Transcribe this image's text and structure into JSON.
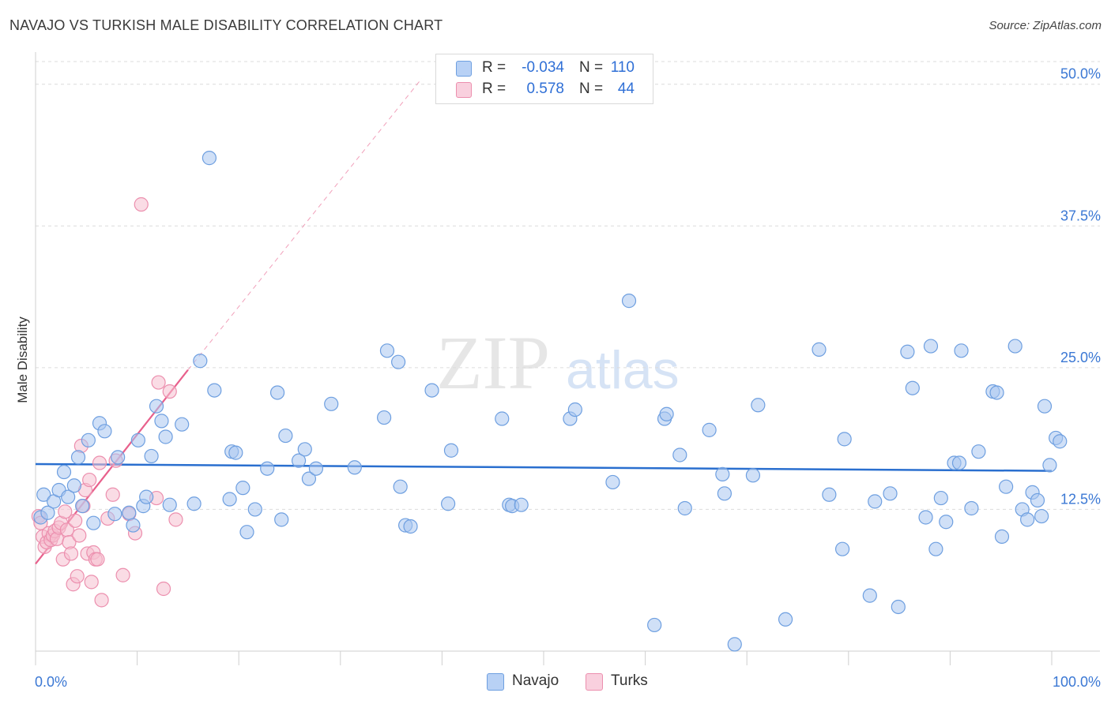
{
  "title": "NAVAJO VS TURKISH MALE DISABILITY CORRELATION CHART",
  "source": "Source: ZipAtlas.com",
  "watermark": {
    "zip": "ZIP",
    "atlas": "atlas"
  },
  "legend": {
    "navajo": {
      "r_label": "R =",
      "r_value": "-0.034",
      "n_label": "N =",
      "n_value": "110"
    },
    "turks": {
      "r_label": "R =",
      "r_value": "0.578",
      "n_label": "N =",
      "n_value": "44"
    }
  },
  "bottom_legend": {
    "navajo": "Navajo",
    "turks": "Turks"
  },
  "colors": {
    "navajo_fill": "#a9c6f0",
    "navajo_stroke": "#6e9fe0",
    "navajo_line": "#2a6fcf",
    "turks_fill": "#f6bfd0",
    "turks_stroke": "#ec8fae",
    "turks_line": "#e8608c",
    "axis_text": "#3b78d4",
    "grid": "#dcdcdc"
  },
  "chart_data": {
    "type": "scatter",
    "title": "NAVAJO VS TURKISH MALE DISABILITY CORRELATION CHART",
    "xlabel": "",
    "ylabel": "Male Disability",
    "xlim": [
      0,
      100
    ],
    "ylim": [
      0,
      52
    ],
    "x_tick_labels": [
      "0.0%",
      "100.0%"
    ],
    "y_ticks": [
      12.5,
      25.0,
      37.5,
      50.0
    ],
    "y_tick_labels": [
      "12.5%",
      "25.0%",
      "37.5%",
      "50.0%"
    ],
    "series": [
      {
        "name": "Navajo",
        "r": -0.034,
        "n": 110,
        "trend": {
          "x": [
            0,
            100
          ],
          "y": [
            16.5,
            15.9
          ]
        },
        "points": [
          [
            0.5,
            11.8
          ],
          [
            0.8,
            13.8
          ],
          [
            1.2,
            12.2
          ],
          [
            1.8,
            13.2
          ],
          [
            2.3,
            14.2
          ],
          [
            2.8,
            15.8
          ],
          [
            3.2,
            13.6
          ],
          [
            3.8,
            14.6
          ],
          [
            4.2,
            17.1
          ],
          [
            4.6,
            12.8
          ],
          [
            5.2,
            18.6
          ],
          [
            5.7,
            11.3
          ],
          [
            6.3,
            20.1
          ],
          [
            6.8,
            19.4
          ],
          [
            7.8,
            12.1
          ],
          [
            8.1,
            17.1
          ],
          [
            9.2,
            12.2
          ],
          [
            9.6,
            11.1
          ],
          [
            10.1,
            18.6
          ],
          [
            10.6,
            12.8
          ],
          [
            10.9,
            13.6
          ],
          [
            11.4,
            17.2
          ],
          [
            11.9,
            21.6
          ],
          [
            12.4,
            20.3
          ],
          [
            12.8,
            18.9
          ],
          [
            13.2,
            12.9
          ],
          [
            14.4,
            20.0
          ],
          [
            15.6,
            13.0
          ],
          [
            16.2,
            25.6
          ],
          [
            17.1,
            43.5
          ],
          [
            17.6,
            23.0
          ],
          [
            19.1,
            13.4
          ],
          [
            19.3,
            17.6
          ],
          [
            19.7,
            17.5
          ],
          [
            20.4,
            14.4
          ],
          [
            20.8,
            10.5
          ],
          [
            21.6,
            12.5
          ],
          [
            22.8,
            16.1
          ],
          [
            23.8,
            22.8
          ],
          [
            24.2,
            11.6
          ],
          [
            24.6,
            19.0
          ],
          [
            25.9,
            16.8
          ],
          [
            26.5,
            17.8
          ],
          [
            26.9,
            15.2
          ],
          [
            27.6,
            16.1
          ],
          [
            29.1,
            21.8
          ],
          [
            31.4,
            16.2
          ],
          [
            34.3,
            20.6
          ],
          [
            34.6,
            26.5
          ],
          [
            35.7,
            25.5
          ],
          [
            35.9,
            14.5
          ],
          [
            36.4,
            11.1
          ],
          [
            36.9,
            11.0
          ],
          [
            39.0,
            23.0
          ],
          [
            40.6,
            13.0
          ],
          [
            40.9,
            17.7
          ],
          [
            45.9,
            20.5
          ],
          [
            46.6,
            12.9
          ],
          [
            46.9,
            12.8
          ],
          [
            47.8,
            12.9
          ],
          [
            52.6,
            20.5
          ],
          [
            53.1,
            21.3
          ],
          [
            56.8,
            14.9
          ],
          [
            58.4,
            30.9
          ],
          [
            60.9,
            2.3
          ],
          [
            61.9,
            20.5
          ],
          [
            62.1,
            20.9
          ],
          [
            63.4,
            17.3
          ],
          [
            63.9,
            12.6
          ],
          [
            66.3,
            19.5
          ],
          [
            67.6,
            15.6
          ],
          [
            67.8,
            13.9
          ],
          [
            68.8,
            0.6
          ],
          [
            70.6,
            15.5
          ],
          [
            71.1,
            21.7
          ],
          [
            73.8,
            2.8
          ],
          [
            77.1,
            26.6
          ],
          [
            78.1,
            13.8
          ],
          [
            79.4,
            9.0
          ],
          [
            79.6,
            18.7
          ],
          [
            82.1,
            4.9
          ],
          [
            82.6,
            13.2
          ],
          [
            84.1,
            13.9
          ],
          [
            84.9,
            3.9
          ],
          [
            85.8,
            26.4
          ],
          [
            86.3,
            23.2
          ],
          [
            87.6,
            11.8
          ],
          [
            88.1,
            26.9
          ],
          [
            88.6,
            9.0
          ],
          [
            89.1,
            13.5
          ],
          [
            89.6,
            11.4
          ],
          [
            90.4,
            16.6
          ],
          [
            90.9,
            16.6
          ],
          [
            91.1,
            26.5
          ],
          [
            92.1,
            12.6
          ],
          [
            92.8,
            17.6
          ],
          [
            94.2,
            22.9
          ],
          [
            94.6,
            22.8
          ],
          [
            95.1,
            10.1
          ],
          [
            95.5,
            14.5
          ],
          [
            96.4,
            26.9
          ],
          [
            97.1,
            12.5
          ],
          [
            97.6,
            11.6
          ],
          [
            98.1,
            14.0
          ],
          [
            98.6,
            13.3
          ],
          [
            99.0,
            11.9
          ],
          [
            99.3,
            21.6
          ],
          [
            99.8,
            16.4
          ],
          [
            100.4,
            18.8
          ],
          [
            100.8,
            18.5
          ]
        ]
      },
      {
        "name": "Turks",
        "r": 0.578,
        "n": 44,
        "trend": {
          "x": [
            0,
            15
          ],
          "y": [
            7.7,
            24.8
          ]
        },
        "trend_dashed": {
          "x": [
            15,
            38
          ],
          "y": [
            24.8,
            50.5
          ]
        },
        "points": [
          [
            0.3,
            11.9
          ],
          [
            0.5,
            11.3
          ],
          [
            0.7,
            10.1
          ],
          [
            0.9,
            9.2
          ],
          [
            1.1,
            9.6
          ],
          [
            1.3,
            10.4
          ],
          [
            1.5,
            9.8
          ],
          [
            1.7,
            10.2
          ],
          [
            1.9,
            10.6
          ],
          [
            2.1,
            9.9
          ],
          [
            2.3,
            10.9
          ],
          [
            2.5,
            11.3
          ],
          [
            2.7,
            8.1
          ],
          [
            2.9,
            12.3
          ],
          [
            3.1,
            10.7
          ],
          [
            3.3,
            9.6
          ],
          [
            3.5,
            8.6
          ],
          [
            3.7,
            5.9
          ],
          [
            3.9,
            11.5
          ],
          [
            4.1,
            6.6
          ],
          [
            4.3,
            10.2
          ],
          [
            4.5,
            18.1
          ],
          [
            4.7,
            12.8
          ],
          [
            4.9,
            14.2
          ],
          [
            5.1,
            8.6
          ],
          [
            5.3,
            15.1
          ],
          [
            5.5,
            6.1
          ],
          [
            5.7,
            8.7
          ],
          [
            5.9,
            8.1
          ],
          [
            6.1,
            8.1
          ],
          [
            6.3,
            16.6
          ],
          [
            6.5,
            4.5
          ],
          [
            7.1,
            11.7
          ],
          [
            7.6,
            13.8
          ],
          [
            7.9,
            16.8
          ],
          [
            8.6,
            6.7
          ],
          [
            9.2,
            12.1
          ],
          [
            9.8,
            10.4
          ],
          [
            10.4,
            39.4
          ],
          [
            11.9,
            13.5
          ],
          [
            12.1,
            23.7
          ],
          [
            12.6,
            5.5
          ],
          [
            13.2,
            22.9
          ],
          [
            13.8,
            11.6
          ]
        ]
      }
    ]
  }
}
